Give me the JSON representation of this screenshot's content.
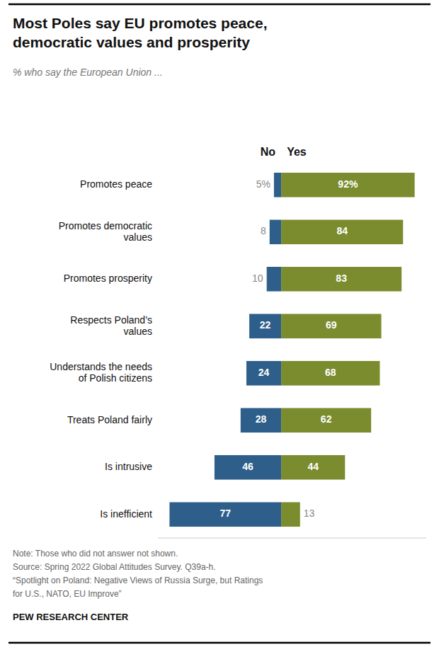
{
  "chart_data": {
    "type": "bar",
    "orientation": "horizontal",
    "title": "Most Poles say EU promotes peace,\ndemocratic values and prosperity",
    "subtitle": "% who say the European Union ...",
    "categories": [
      "Promotes peace",
      "Promotes democratic\nvalues",
      "Promotes prosperity",
      "Respects Poland’s\nvalues",
      "Understands the needs\nof Polish citizens",
      "Treats Poland fairly",
      "Is intrusive",
      "Is inefficient"
    ],
    "series": [
      {
        "name": "No",
        "color": "#2E5F8A",
        "values": [
          5,
          8,
          10,
          22,
          24,
          28,
          46,
          77
        ],
        "value_labels": [
          "5%",
          "8",
          "10",
          "22",
          "24",
          "28",
          "46",
          "77"
        ]
      },
      {
        "name": "Yes",
        "color": "#7A8C2E",
        "values": [
          92,
          84,
          83,
          69,
          68,
          62,
          44,
          13
        ],
        "value_labels": [
          "92%",
          "84",
          "83",
          "69",
          "68",
          "62",
          "44",
          "13"
        ]
      }
    ],
    "xlim": [
      -85,
      100
    ],
    "data_labels": true,
    "tick_labels": "y",
    "grid": false,
    "annotations": [
      "Note: Those who did not answer not shown.",
      "Source: Spring 2022 Global Attitudes Survey. Q39a-h.",
      "“Spotlight on Poland: Negative Views of Russia Surge, but Ratings",
      "for U.S., NATO, EU Improve”",
      "PEW RESEARCH CENTER"
    ]
  }
}
